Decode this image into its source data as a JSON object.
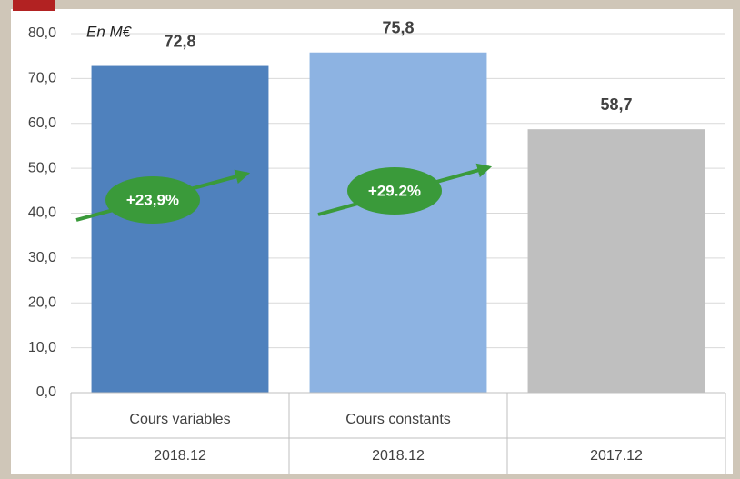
{
  "chart_data": {
    "type": "bar",
    "unit_note": "En M€",
    "categories": [
      "2018.12",
      "2018.12",
      "2017.12"
    ],
    "category_groups": [
      "Cours variables",
      "Cours constants",
      null
    ],
    "values": [
      72.8,
      75.8,
      58.7
    ],
    "value_labels": [
      "72,8",
      "75,8",
      "58,7"
    ],
    "colors": [
      "#4f81bd",
      "#8db3e2",
      "#bfbfbf"
    ],
    "ylim": [
      0,
      80
    ],
    "yticks": [
      {
        "value": 0,
        "label": "0,0"
      },
      {
        "value": 10,
        "label": "10,0"
      },
      {
        "value": 20,
        "label": "20,0"
      },
      {
        "value": 30,
        "label": "30,0"
      },
      {
        "value": 40,
        "label": "40,0"
      },
      {
        "value": 50,
        "label": "50,0"
      },
      {
        "value": 60,
        "label": "60,0"
      },
      {
        "value": 70,
        "label": "70,0"
      },
      {
        "value": 80,
        "label": "80,0"
      }
    ],
    "grid": true,
    "annotations": [
      "+23,9%",
      "+29.2%"
    ]
  }
}
